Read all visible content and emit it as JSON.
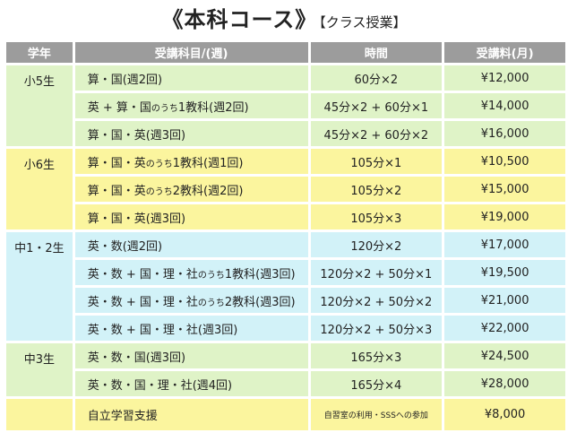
{
  "title": {
    "main": "《本科コース》",
    "sub": "【クラス授業】"
  },
  "headers": [
    "学年",
    "受講科目/(週)",
    "時間",
    "受講料(月)"
  ],
  "groups": [
    {
      "grade": "小5生",
      "rows": [
        {
          "course": [
            "算・国(週2回)"
          ],
          "time": "60分×2",
          "price": "¥12,000"
        },
        {
          "course": [
            "英 + 算・国",
            "のうち",
            "1教科(週2回)"
          ],
          "time": "45分×2 + 60分×1",
          "price": "¥14,000"
        },
        {
          "course": [
            "算・国・英(週3回)"
          ],
          "time": "45分×2 + 60分×2",
          "price": "¥16,000"
        }
      ]
    },
    {
      "grade": "小6生",
      "rows": [
        {
          "course": [
            "算・国・英",
            "のうち",
            "1教科(週1回)"
          ],
          "time": "105分×1",
          "price": "¥10,500"
        },
        {
          "course": [
            "算・国・英",
            "のうち",
            "2教科(週2回)"
          ],
          "time": "105分×2",
          "price": "¥15,000"
        },
        {
          "course": [
            "算・国・英(週3回)"
          ],
          "time": "105分×3",
          "price": "¥19,000"
        }
      ]
    },
    {
      "grade": "中1・2生",
      "rows": [
        {
          "course": [
            "英・数(週2回)"
          ],
          "time": "120分×2",
          "price": "¥17,000"
        },
        {
          "course": [
            "英・数 + 国・理・社",
            "のうち",
            "1教科(週3回)"
          ],
          "time": "120分×2 + 50分×1",
          "price": "¥19,500"
        },
        {
          "course": [
            "英・数 + 国・理・社",
            "のうち",
            "2教科(週3回)"
          ],
          "time": "120分×2 + 50分×2",
          "price": "¥21,000"
        },
        {
          "course": [
            "英・数 + 国・理・社(週3回)"
          ],
          "time": "120分×2 + 50分×3",
          "price": "¥22,000"
        }
      ]
    },
    {
      "grade": "中3生",
      "rows": [
        {
          "course": [
            "英・数・国(週3回)"
          ],
          "time": "165分×3",
          "price": "¥24,500"
        },
        {
          "course": [
            "英・数・国・理・社(週4回)"
          ],
          "time": "165分×4",
          "price": "¥28,000"
        }
      ]
    },
    {
      "grade": "",
      "rows": [
        {
          "course": [
            "自立学習支援"
          ],
          "time": "自習室の利用・SSSへの参加",
          "price": "¥8,000",
          "small_time": true
        }
      ]
    }
  ],
  "colors": {
    "header": "#9c9c9c",
    "green": "#dff3c7",
    "yellow": "#fbf59e",
    "blue": "#d2f2f8"
  }
}
